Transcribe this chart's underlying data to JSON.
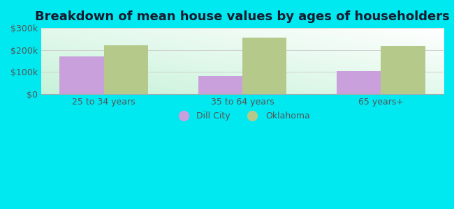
{
  "title": "Breakdown of mean house values by ages of householders",
  "categories": [
    "25 to 34 years",
    "35 to 64 years",
    "65 years+"
  ],
  "dill_city_values": [
    170000,
    82000,
    105000
  ],
  "oklahoma_values": [
    222000,
    255000,
    218000
  ],
  "ylim": [
    0,
    300000
  ],
  "yticks": [
    0,
    100000,
    200000,
    300000
  ],
  "ytick_labels": [
    "$0",
    "$100k",
    "$200k",
    "$300k"
  ],
  "bar_width": 0.32,
  "dill_city_color": "#c9a0dc",
  "oklahoma_color": "#b5c98a",
  "background_outer": "#00e8f0",
  "legend_dill_city": "Dill City",
  "legend_oklahoma": "Oklahoma",
  "title_fontsize": 13,
  "tick_fontsize": 9,
  "title_color": "#1a1a2e",
  "tick_color": "#555555"
}
